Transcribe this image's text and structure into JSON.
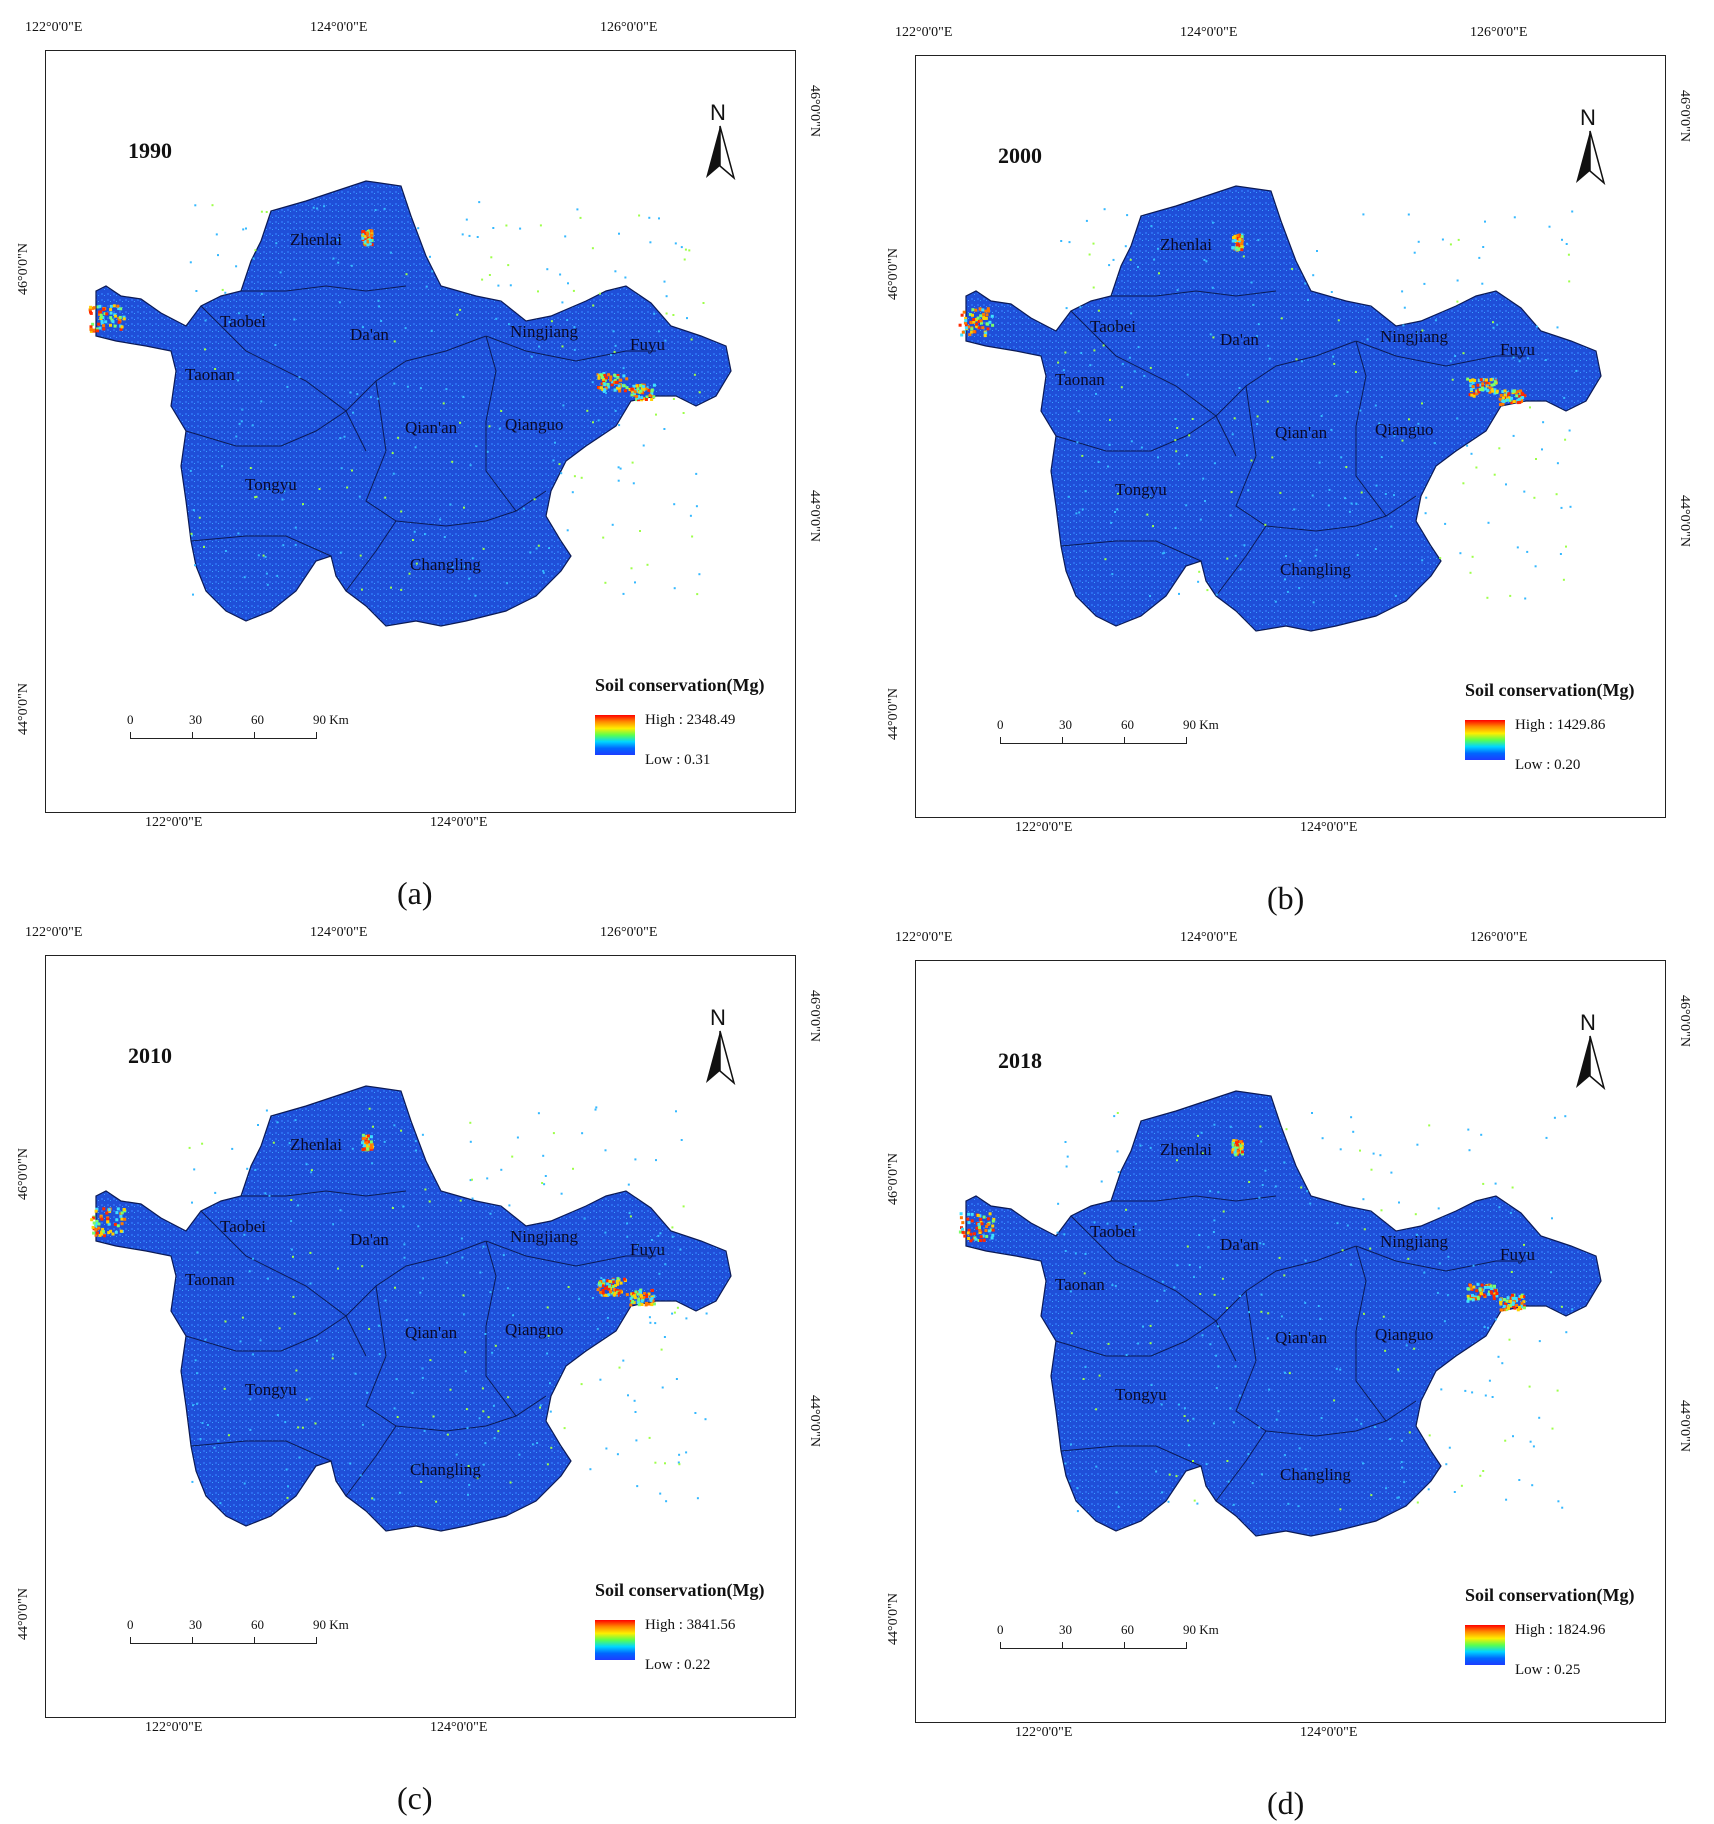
{
  "panels": [
    {
      "caption": "(a)",
      "year": "1990",
      "legend_title": "Soil conservation(Mg)",
      "high": "High : 2348.49",
      "low": "Low : 0.31"
    },
    {
      "caption": "(b)",
      "year": "2000",
      "legend_title": "Soil conservation(Mg)",
      "high": "High : 1429.86",
      "low": "Low : 0.20"
    },
    {
      "caption": "(c)",
      "year": "2010",
      "legend_title": "Soil conservation(Mg)",
      "high": "High : 3841.56",
      "low": "Low : 0.22"
    },
    {
      "caption": "(d)",
      "year": "2018",
      "legend_title": "Soil conservation(Mg)",
      "high": "High : 1824.96",
      "low": "Low : 0.25"
    }
  ],
  "axis": {
    "top_ticks": [
      "122°0'0\"E",
      "124°0'0\"E",
      "126°0'0\"E"
    ],
    "bottom_ticks": [
      "122°0'0\"E",
      "124°0'0\"E"
    ],
    "left_ticks": [
      "46°0'0\"N",
      "44°0'0\"N"
    ],
    "right_ticks": [
      "46°0'0\"N",
      "44°0'0\"N"
    ]
  },
  "north_label": "N",
  "scale_labels": [
    "0",
    "30",
    "60",
    "90 Km"
  ],
  "places": [
    "Zhenlai",
    "Taobei",
    "Da'an",
    "Ningjiang",
    "Fuyu",
    "Taonan",
    "Qian'an",
    "Qianguo",
    "Tongyu",
    "Changling"
  ],
  "colors": {
    "map_blue": "#1f4fd8",
    "ramp_high": "#ff0000",
    "ramp_low": "#1d3cff"
  }
}
